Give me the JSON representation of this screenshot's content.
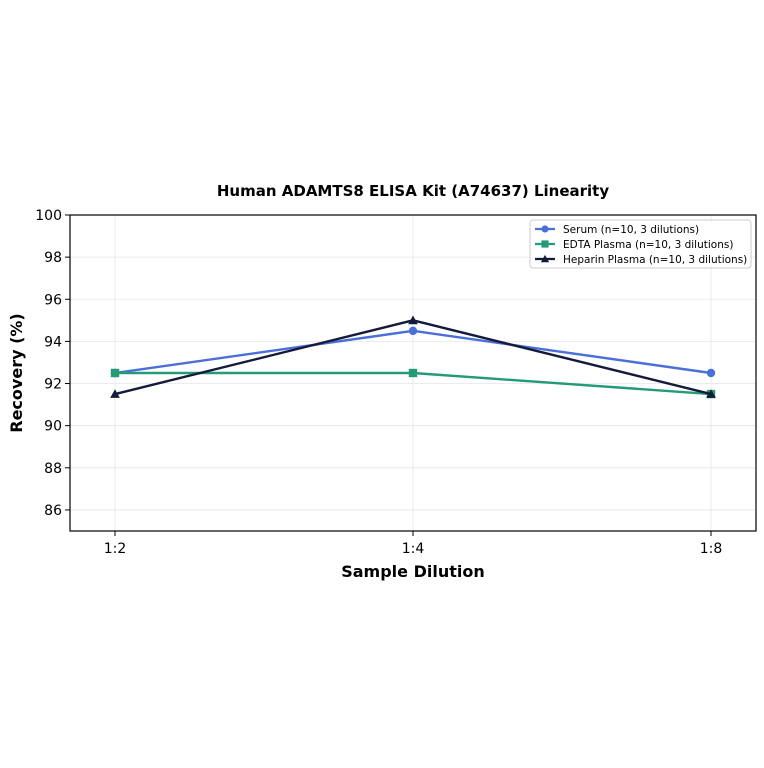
{
  "chart_data": {
    "type": "line",
    "title": "Human ADAMTS8 ELISA Kit (A74637) Linearity",
    "xlabel": "Sample Dilution",
    "ylabel": "Recovery (%)",
    "categories": [
      "1:2",
      "1:4",
      "1:8"
    ],
    "ylim": [
      85,
      100
    ],
    "yticks": [
      86,
      88,
      90,
      92,
      94,
      96,
      98,
      100
    ],
    "grid": true,
    "legend_position": "top-right",
    "series": [
      {
        "name": "Serum (n=10, 3 dilutions)",
        "values": [
          92.5,
          94.5,
          92.5
        ],
        "color": "#4a6fd8",
        "marker": "circle"
      },
      {
        "name": "EDTA Plasma (n=10, 3 dilutions)",
        "values": [
          92.5,
          92.5,
          91.5
        ],
        "color": "#249a78",
        "marker": "square"
      },
      {
        "name": "Heparin Plasma (n=10, 3 dilutions)",
        "values": [
          91.5,
          95,
          91.5
        ],
        "color": "#141b3a",
        "marker": "triangle"
      }
    ]
  }
}
